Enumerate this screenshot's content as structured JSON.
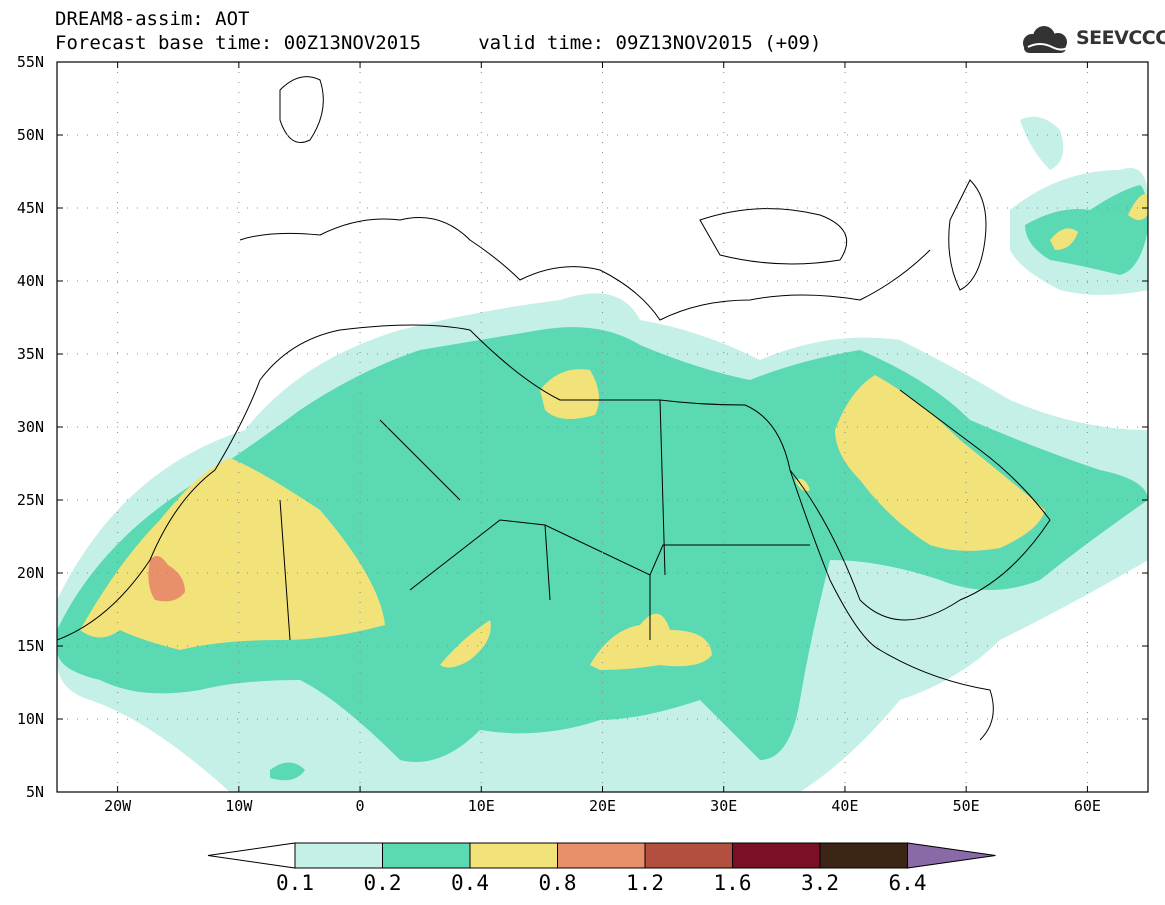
{
  "header": {
    "title_line1": "DREAM8-assim: AOT",
    "title_line2": "Forecast base time: 00Z13NOV2015     valid time: 09Z13NOV2015 (+09)",
    "logo_text": "SEEVCCC"
  },
  "map": {
    "lat_labels": [
      "55N",
      "50N",
      "45N",
      "40N",
      "35N",
      "30N",
      "25N",
      "20N",
      "15N",
      "10N",
      "5N"
    ],
    "lon_labels": [
      "20W",
      "10W",
      "0",
      "10E",
      "20E",
      "30E",
      "40E",
      "50E",
      "60E"
    ],
    "lat_range": [
      5,
      55
    ],
    "lon_range": [
      -25,
      65
    ],
    "background": "#ffffff",
    "border_color": "#000000"
  },
  "legend": {
    "values": [
      "0.1",
      "0.2",
      "0.4",
      "0.8",
      "1.2",
      "1.6",
      "3.2",
      "6.4"
    ],
    "colors": [
      "#c5f0e8",
      "#5ad9b3",
      "#f2e27a",
      "#e8906a",
      "#b24f3f",
      "#7a0f26",
      "#3d2516",
      "#8a6aa6"
    ],
    "under_color": "#ffffff"
  }
}
